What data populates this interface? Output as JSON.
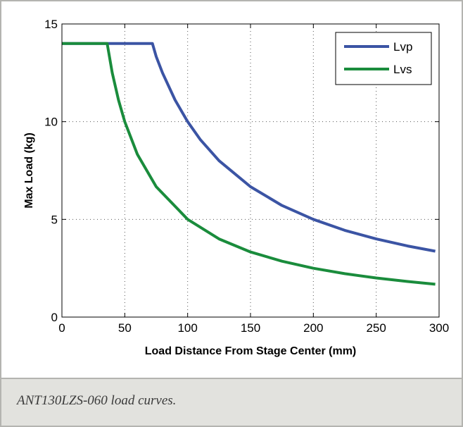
{
  "caption": "ANT130LZS-060 load curves.",
  "chart_data": {
    "type": "line",
    "title": "",
    "xlabel": "Load Distance From Stage Center (mm)",
    "ylabel": "Max Load (kg)",
    "xlim": [
      0,
      300
    ],
    "ylim": [
      0,
      15
    ],
    "xticks": [
      0,
      50,
      100,
      150,
      200,
      250,
      300
    ],
    "yticks": [
      0,
      5,
      10,
      15
    ],
    "grid": true,
    "legend_position": "top-right",
    "series": [
      {
        "name": "Lvp",
        "color": "#3b54a4",
        "x": [
          0,
          72,
          75,
          80,
          90,
          100,
          110,
          125,
          150,
          175,
          200,
          225,
          250,
          275,
          297
        ],
        "y": [
          14,
          14,
          13.33,
          12.5,
          11.11,
          10,
          9.09,
          8,
          6.67,
          5.71,
          5,
          4.44,
          4,
          3.64,
          3.37
        ]
      },
      {
        "name": "Lvs",
        "color": "#1a8c3c",
        "x": [
          0,
          36,
          40,
          45,
          50,
          60,
          75,
          100,
          125,
          150,
          175,
          200,
          225,
          250,
          275,
          297
        ],
        "y": [
          14,
          14,
          12.5,
          11.11,
          10,
          8.33,
          6.67,
          5,
          4,
          3.33,
          2.86,
          2.5,
          2.22,
          2,
          1.82,
          1.68
        ]
      }
    ]
  }
}
